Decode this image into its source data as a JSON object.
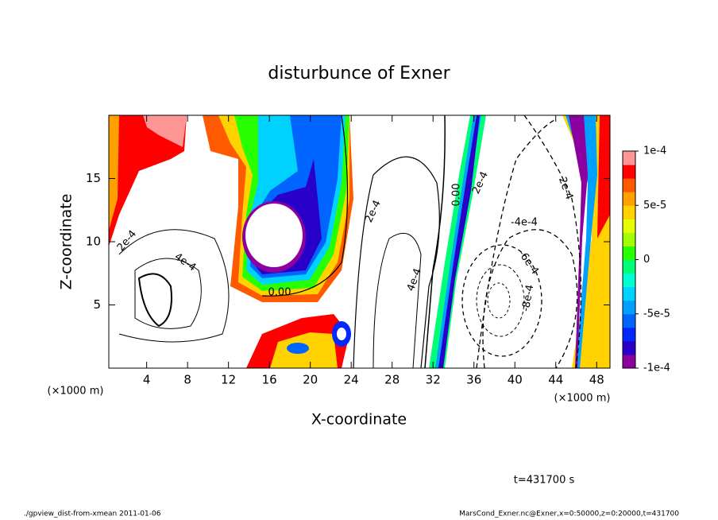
{
  "chart_data": {
    "type": "contour",
    "title": "disturbunce of Exner",
    "x_label": "X-coordinate",
    "y_label": "Z-coordinate",
    "x_unit": "(×1000 m)",
    "y_unit": "(×1000 m)",
    "xlim": [
      0.3,
      49.3
    ],
    "ylim": [
      0,
      20
    ],
    "xticks": [
      4,
      8,
      12,
      16,
      20,
      24,
      28,
      32,
      36,
      40,
      44,
      48
    ],
    "yticks": [
      5,
      10,
      15
    ],
    "clim": [
      -0.0001,
      0.0001
    ],
    "cticks": [
      {
        "value": 0.0001,
        "label": "1e-4"
      },
      {
        "value": 5e-05,
        "label": "5e-5"
      },
      0,
      {
        "value": -5e-05,
        "label": "-5e-5"
      },
      {
        "value": -0.0001,
        "label": "-1e-4"
      }
    ],
    "colors": [
      "#8c00a0",
      "#2800c8",
      "#0028ff",
      "#0064ff",
      "#00a0ff",
      "#00d2ff",
      "#00ffd2",
      "#00ff78",
      "#28ff00",
      "#a0ff00",
      "#e6ff00",
      "#ffd200",
      "#ffa000",
      "#ff5a00",
      "#ff0000",
      "#ff9696"
    ],
    "contour_labels": [
      "2e-4",
      "4e-4",
      "0.00",
      "2e-4",
      "4e-4",
      "0.00",
      "2e-4",
      "-4e-4",
      "-6e-4",
      "-8e-4",
      "2e-4"
    ],
    "time_label": "t=431700 s",
    "footer_left": "./gpview_dist-from-xmean  2011-01-06",
    "footer_right": "MarsCond_Exner.nc@Exner,x=0:50000,z=0:20000,t=431700"
  }
}
